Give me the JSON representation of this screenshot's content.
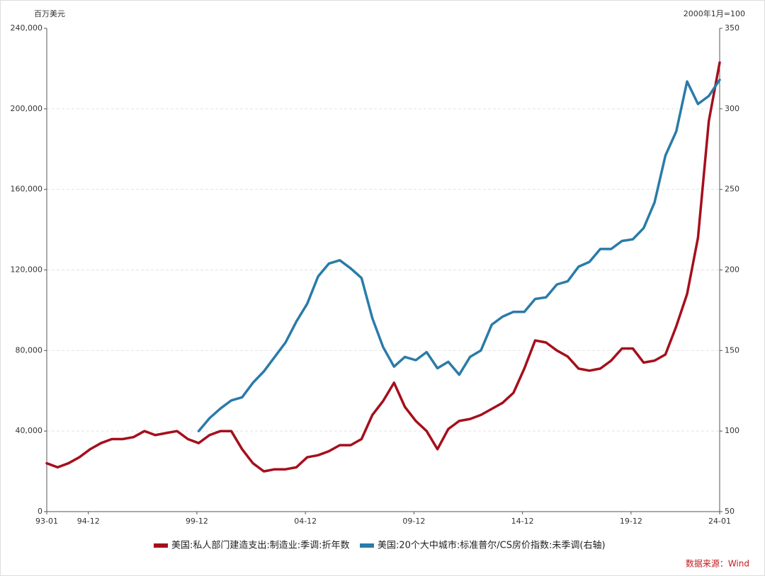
{
  "chart_data": {
    "type": "line",
    "y_unit_label": "百万美元",
    "y2_unit_label": "2000年1月=100",
    "source": "数据来源：Wind",
    "x": [
      "93-01",
      "93-07",
      "94-01",
      "94-07",
      "95-01",
      "95-07",
      "96-01",
      "96-07",
      "97-01",
      "97-07",
      "98-01",
      "98-07",
      "99-01",
      "99-07",
      "00-01",
      "00-07",
      "01-01",
      "01-07",
      "02-01",
      "02-07",
      "03-01",
      "03-07",
      "04-01",
      "04-07",
      "05-01",
      "05-07",
      "06-01",
      "06-07",
      "07-01",
      "07-07",
      "08-01",
      "08-07",
      "09-01",
      "09-07",
      "10-01",
      "10-07",
      "11-01",
      "11-07",
      "12-01",
      "12-07",
      "13-01",
      "13-07",
      "14-01",
      "14-07",
      "15-01",
      "15-07",
      "16-01",
      "16-07",
      "17-01",
      "17-07",
      "18-01",
      "18-07",
      "19-01",
      "19-07",
      "20-01",
      "20-07",
      "21-01",
      "21-07",
      "22-01",
      "22-07",
      "23-01",
      "23-07",
      "24-01"
    ],
    "xlim": [
      "93-01",
      "24-01"
    ],
    "xticks": [
      "93-01",
      "94-12",
      "99-12",
      "04-12",
      "09-12",
      "14-12",
      "19-12",
      "24-01"
    ],
    "ylim": [
      0,
      240000
    ],
    "yticks": [
      0,
      {
        "value": 40000,
        "label": "40,000"
      },
      {
        "value": 80000,
        "label": "80,000"
      },
      {
        "value": 120000,
        "label": "120,000"
      },
      {
        "value": 160000,
        "label": "160,000"
      },
      {
        "value": 200000,
        "label": "200,000"
      },
      {
        "value": 240000,
        "label": "240,000"
      }
    ],
    "y2lim": [
      50,
      350
    ],
    "y2ticks": [
      50,
      100,
      150,
      200,
      250,
      300,
      350
    ],
    "grid": true,
    "legend": "bottom",
    "series": [
      {
        "name": "美国:私人部门建造支出:制造业:季调:折年数",
        "color": "#a50f1c",
        "axis": "y",
        "values": [
          24000,
          22000,
          24000,
          27000,
          31000,
          34000,
          36000,
          36000,
          37000,
          40000,
          38000,
          39000,
          40000,
          36000,
          34000,
          38000,
          40000,
          40000,
          31000,
          24000,
          20000,
          21000,
          21000,
          22000,
          27000,
          28000,
          30000,
          33000,
          33000,
          36000,
          48000,
          55000,
          64000,
          52000,
          45000,
          40000,
          31000,
          41000,
          45000,
          46000,
          48000,
          51000,
          54000,
          59000,
          71000,
          85000,
          84000,
          80000,
          77000,
          71000,
          70000,
          71000,
          75000,
          81000,
          81000,
          74000,
          75000,
          78000,
          92000,
          108000,
          136000,
          194000,
          223000
        ]
      },
      {
        "name": "美国:20个大中城市:标准普尔/CS房价指数:未季调(右轴)",
        "color": "#2a7ba8",
        "axis": "y2",
        "values": [
          null,
          null,
          null,
          null,
          null,
          null,
          null,
          null,
          null,
          null,
          null,
          null,
          null,
          null,
          100,
          108,
          114,
          119,
          121,
          130,
          137,
          146,
          155,
          168,
          179,
          196,
          204,
          206,
          201,
          195,
          170,
          152,
          140,
          146,
          144,
          149,
          139,
          143,
          135,
          146,
          150,
          166,
          171,
          174,
          174,
          182,
          183,
          191,
          193,
          202,
          205,
          213,
          213,
          218,
          219,
          226,
          242,
          271,
          286,
          317,
          303,
          308,
          318
        ]
      }
    ]
  }
}
